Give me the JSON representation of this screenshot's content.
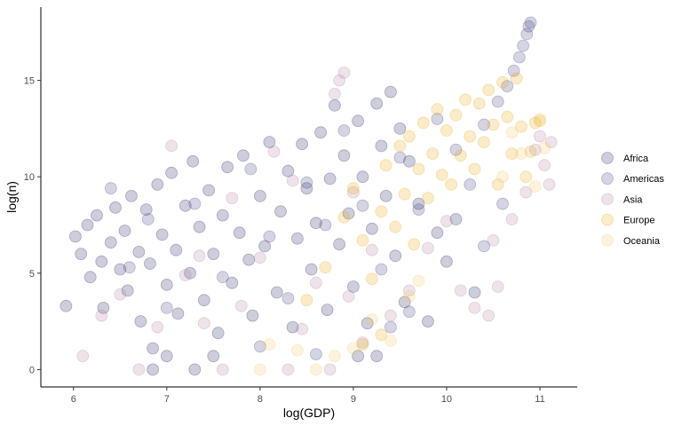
{
  "chart_data": {
    "type": "scatter",
    "xlabel": "log(GDP)",
    "ylabel": "log(n)",
    "xlim": [
      5.65,
      11.4
    ],
    "ylim": [
      -0.9,
      18.8
    ],
    "x_ticks": [
      6,
      7,
      8,
      9,
      10,
      11
    ],
    "y_ticks": [
      0,
      5,
      10,
      15
    ],
    "grid": false,
    "legend_position": "right",
    "point_opacity": 0.22,
    "series": [
      {
        "name": "Africa",
        "color": "#1b1a5c",
        "points": [
          [
            5.92,
            3.3
          ],
          [
            6.02,
            6.9
          ],
          [
            6.08,
            6.0
          ],
          [
            6.15,
            7.5
          ],
          [
            6.18,
            4.8
          ],
          [
            6.25,
            8.0
          ],
          [
            6.3,
            5.6
          ],
          [
            6.32,
            3.2
          ],
          [
            6.4,
            6.6
          ],
          [
            6.45,
            8.4
          ],
          [
            6.5,
            5.2
          ],
          [
            6.55,
            7.2
          ],
          [
            6.58,
            4.1
          ],
          [
            6.62,
            9.0
          ],
          [
            6.7,
            6.1
          ],
          [
            6.72,
            2.5
          ],
          [
            6.78,
            8.3
          ],
          [
            6.82,
            5.5
          ],
          [
            6.85,
            1.1
          ],
          [
            6.9,
            9.6
          ],
          [
            6.95,
            7.0
          ],
          [
            7.0,
            4.4
          ],
          [
            7.05,
            10.2
          ],
          [
            7.1,
            6.2
          ],
          [
            7.12,
            2.9
          ],
          [
            7.2,
            8.5
          ],
          [
            7.25,
            5.0
          ],
          [
            7.28,
            10.8
          ],
          [
            7.35,
            7.4
          ],
          [
            7.4,
            3.6
          ],
          [
            7.45,
            9.3
          ],
          [
            7.5,
            6.0
          ],
          [
            7.55,
            1.9
          ],
          [
            7.6,
            8.0
          ],
          [
            7.65,
            10.5
          ],
          [
            7.7,
            4.5
          ],
          [
            7.78,
            7.1
          ],
          [
            7.82,
            11.1
          ],
          [
            7.88,
            5.7
          ],
          [
            7.92,
            2.8
          ],
          [
            8.0,
            9.0
          ],
          [
            8.05,
            6.4
          ],
          [
            8.1,
            11.8
          ],
          [
            8.18,
            4.0
          ],
          [
            8.22,
            8.2
          ],
          [
            8.3,
            10.3
          ],
          [
            8.35,
            2.2
          ],
          [
            8.4,
            6.8
          ],
          [
            8.45,
            11.7
          ],
          [
            8.5,
            9.4
          ],
          [
            8.55,
            5.2
          ],
          [
            8.6,
            7.6
          ],
          [
            8.65,
            12.3
          ],
          [
            8.72,
            3.1
          ],
          [
            8.75,
            9.9
          ],
          [
            8.8,
            13.7
          ],
          [
            8.85,
            6.5
          ],
          [
            8.9,
            11.1
          ],
          [
            8.95,
            8.1
          ],
          [
            9.0,
            4.3
          ],
          [
            9.05,
            12.9
          ],
          [
            9.1,
            10.0
          ],
          [
            9.15,
            2.4
          ],
          [
            9.2,
            7.3
          ],
          [
            9.25,
            13.8
          ],
          [
            9.3,
            11.6
          ],
          [
            9.35,
            9.0
          ],
          [
            9.4,
            14.4
          ],
          [
            9.45,
            5.9
          ],
          [
            9.5,
            12.5
          ],
          [
            9.55,
            3.5
          ],
          [
            9.6,
            10.8
          ],
          [
            9.7,
            8.6
          ],
          [
            9.8,
            2.5
          ],
          [
            9.9,
            7.1
          ],
          [
            10.0,
            5.6
          ],
          [
            10.1,
            7.8
          ],
          [
            10.3,
            4.0
          ],
          [
            6.85,
            0.0
          ],
          [
            7.0,
            0.7
          ],
          [
            7.3,
            0.0
          ],
          [
            7.5,
            0.7
          ],
          [
            9.05,
            0.7
          ],
          [
            9.25,
            0.7
          ]
        ]
      },
      {
        "name": "Americas",
        "color": "#3b3d80",
        "points": [
          [
            6.4,
            9.4
          ],
          [
            6.6,
            5.3
          ],
          [
            6.8,
            7.8
          ],
          [
            7.0,
            3.2
          ],
          [
            7.3,
            8.6
          ],
          [
            7.6,
            4.8
          ],
          [
            7.9,
            10.4
          ],
          [
            8.1,
            6.9
          ],
          [
            8.3,
            3.7
          ],
          [
            8.5,
            9.7
          ],
          [
            8.7,
            7.5
          ],
          [
            8.9,
            12.4
          ],
          [
            9.1,
            8.5
          ],
          [
            9.3,
            5.2
          ],
          [
            9.5,
            11.0
          ],
          [
            9.7,
            8.3
          ],
          [
            9.9,
            13.0
          ],
          [
            10.1,
            11.4
          ],
          [
            10.25,
            9.6
          ],
          [
            10.4,
            12.7
          ],
          [
            10.55,
            13.9
          ],
          [
            10.65,
            14.7
          ],
          [
            10.72,
            15.5
          ],
          [
            10.78,
            16.2
          ],
          [
            10.82,
            16.8
          ],
          [
            10.86,
            17.4
          ],
          [
            10.88,
            17.8
          ],
          [
            10.9,
            18.0
          ],
          [
            10.6,
            8.6
          ],
          [
            10.4,
            6.4
          ],
          [
            8.0,
            1.2
          ],
          [
            8.6,
            0.8
          ],
          [
            9.4,
            2.2
          ],
          [
            9.6,
            3.0
          ]
        ]
      },
      {
        "name": "Asia",
        "color": "#b07ea1",
        "points": [
          [
            6.1,
            0.7
          ],
          [
            6.3,
            2.8
          ],
          [
            6.5,
            3.9
          ],
          [
            6.7,
            0.0
          ],
          [
            6.9,
            2.2
          ],
          [
            7.05,
            11.6
          ],
          [
            7.2,
            4.9
          ],
          [
            7.4,
            2.4
          ],
          [
            7.6,
            0.0
          ],
          [
            7.8,
            3.3
          ],
          [
            8.0,
            5.8
          ],
          [
            8.15,
            11.3
          ],
          [
            8.3,
            0.0
          ],
          [
            8.45,
            2.1
          ],
          [
            8.6,
            4.5
          ],
          [
            8.75,
            0.0
          ],
          [
            8.8,
            14.3
          ],
          [
            8.85,
            15.0
          ],
          [
            8.9,
            15.4
          ],
          [
            8.95,
            3.8
          ],
          [
            9.1,
            1.4
          ],
          [
            9.2,
            6.2
          ],
          [
            9.4,
            2.8
          ],
          [
            9.6,
            4.1
          ],
          [
            9.8,
            6.3
          ],
          [
            10.0,
            7.7
          ],
          [
            10.15,
            4.1
          ],
          [
            10.3,
            3.2
          ],
          [
            10.45,
            2.8
          ],
          [
            10.55,
            4.3
          ],
          [
            10.7,
            7.8
          ],
          [
            10.85,
            9.2
          ],
          [
            10.95,
            11.4
          ],
          [
            11.05,
            10.6
          ],
          [
            11.1,
            9.6
          ],
          [
            11.12,
            11.8
          ],
          [
            11.0,
            12.1
          ],
          [
            10.5,
            6.7
          ],
          [
            9.0,
            9.2
          ],
          [
            8.35,
            9.8
          ],
          [
            7.7,
            8.9
          ],
          [
            7.35,
            5.9
          ]
        ]
      },
      {
        "name": "Europe",
        "color": "#e8a70e",
        "points": [
          [
            8.5,
            3.6
          ],
          [
            8.7,
            5.3
          ],
          [
            8.9,
            7.9
          ],
          [
            9.0,
            9.4
          ],
          [
            9.1,
            6.7
          ],
          [
            9.2,
            4.7
          ],
          [
            9.3,
            8.2
          ],
          [
            9.35,
            10.6
          ],
          [
            9.45,
            7.4
          ],
          [
            9.5,
            11.6
          ],
          [
            9.55,
            9.1
          ],
          [
            9.6,
            12.1
          ],
          [
            9.65,
            6.5
          ],
          [
            9.7,
            10.4
          ],
          [
            9.75,
            12.8
          ],
          [
            9.8,
            8.9
          ],
          [
            9.85,
            11.2
          ],
          [
            9.9,
            13.5
          ],
          [
            9.95,
            10.1
          ],
          [
            10.0,
            12.4
          ],
          [
            10.05,
            9.6
          ],
          [
            10.1,
            13.2
          ],
          [
            10.15,
            11.1
          ],
          [
            10.2,
            14.0
          ],
          [
            10.25,
            12.1
          ],
          [
            10.3,
            10.4
          ],
          [
            10.35,
            13.8
          ],
          [
            10.4,
            11.8
          ],
          [
            10.45,
            14.5
          ],
          [
            10.5,
            12.7
          ],
          [
            10.55,
            9.6
          ],
          [
            10.6,
            14.9
          ],
          [
            10.65,
            13.1
          ],
          [
            10.7,
            11.2
          ],
          [
            10.75,
            15.1
          ],
          [
            10.8,
            12.6
          ],
          [
            10.85,
            10.0
          ],
          [
            10.9,
            11.3
          ],
          [
            10.95,
            12.8
          ],
          [
            11.0,
            12.9
          ],
          [
            9.1,
            1.3
          ],
          [
            9.3,
            1.8
          ]
        ]
      },
      {
        "name": "Oceania",
        "color": "#f3c86a",
        "points": [
          [
            8.0,
            0.0
          ],
          [
            8.1,
            1.3
          ],
          [
            8.4,
            1.0
          ],
          [
            8.6,
            0.0
          ],
          [
            8.8,
            0.7
          ],
          [
            9.0,
            1.1
          ],
          [
            9.2,
            2.6
          ],
          [
            9.4,
            1.5
          ],
          [
            9.6,
            3.8
          ],
          [
            10.6,
            10.0
          ],
          [
            10.8,
            11.2
          ],
          [
            10.95,
            9.5
          ],
          [
            11.0,
            13.0
          ],
          [
            11.05,
            11.5
          ],
          [
            10.7,
            12.3
          ],
          [
            9.7,
            4.6
          ]
        ]
      }
    ]
  }
}
